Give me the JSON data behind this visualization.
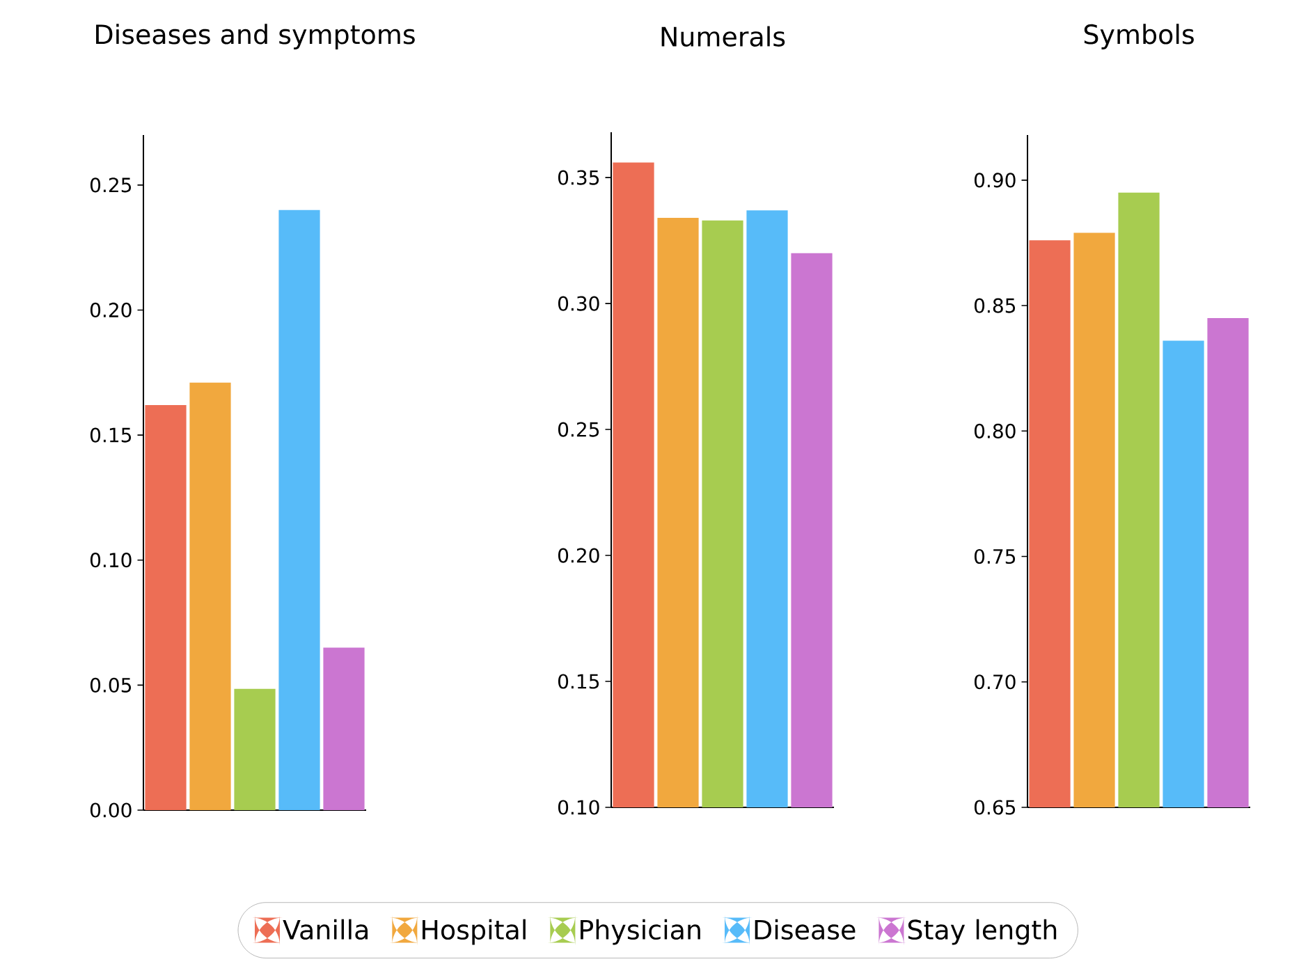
{
  "chart_data": [
    {
      "type": "bar",
      "title": "Diseases and symptoms",
      "categories": [
        null
      ],
      "ylim": [
        0,
        0.27
      ],
      "yticks": [
        {
          "value": 0,
          "label": "0.00"
        },
        0.05,
        {
          "value": 0.1,
          "label": "0.10"
        },
        0.15,
        {
          "value": 0.2,
          "label": "0.20"
        },
        0.25
      ],
      "legend": "bottom",
      "series": [
        {
          "name": "Vanilla",
          "color": "#ed6e55",
          "values": [
            0.162
          ]
        },
        {
          "name": "Hospital",
          "color": "#f1a83e",
          "values": [
            0.171
          ]
        },
        {
          "name": "Physician",
          "color": "#a7cc50",
          "values": [
            0.0485
          ]
        },
        {
          "name": "Disease",
          "color": "#57bbf9",
          "values": [
            0.24
          ]
        },
        {
          "name": "Stay length",
          "color": "#cb76d1",
          "values": [
            0.065
          ]
        }
      ]
    },
    {
      "type": "bar",
      "title": "Numerals",
      "categories": [
        null
      ],
      "ylim": [
        0.1,
        0.368
      ],
      "yticks": [
        {
          "value": 0.1,
          "label": "0.10"
        },
        0.15,
        {
          "value": 0.2,
          "label": "0.20"
        },
        0.25,
        {
          "value": 0.3,
          "label": "0.30"
        },
        0.35
      ],
      "series": [
        {
          "color": "#ed6e55",
          "values": [
            0.356
          ]
        },
        {
          "color": "#f1a83e",
          "values": [
            0.334
          ]
        },
        {
          "color": "#a7cc50",
          "values": [
            0.333
          ]
        },
        {
          "color": "#57bbf9",
          "values": [
            0.337
          ]
        },
        {
          "color": "#cb76d1",
          "values": [
            0.32
          ]
        }
      ]
    },
    {
      "type": "bar",
      "title": "Symbols",
      "categories": [
        null
      ],
      "ylim": [
        0.65,
        0.918
      ],
      "yticks": [
        0.65,
        {
          "value": 0.7,
          "label": "0.70"
        },
        0.75,
        {
          "value": 0.8,
          "label": "0.80"
        },
        0.85,
        {
          "value": 0.9,
          "label": "0.90"
        }
      ],
      "series": [
        {
          "color": "#ed6e55",
          "values": [
            0.876
          ]
        },
        {
          "color": "#f1a83e",
          "values": [
            0.879
          ]
        },
        {
          "color": "#a7cc50",
          "values": [
            0.895
          ]
        },
        {
          "color": "#57bbf9",
          "values": [
            0.836
          ]
        },
        {
          "color": "#cb76d1",
          "values": [
            0.845
          ]
        }
      ]
    }
  ]
}
